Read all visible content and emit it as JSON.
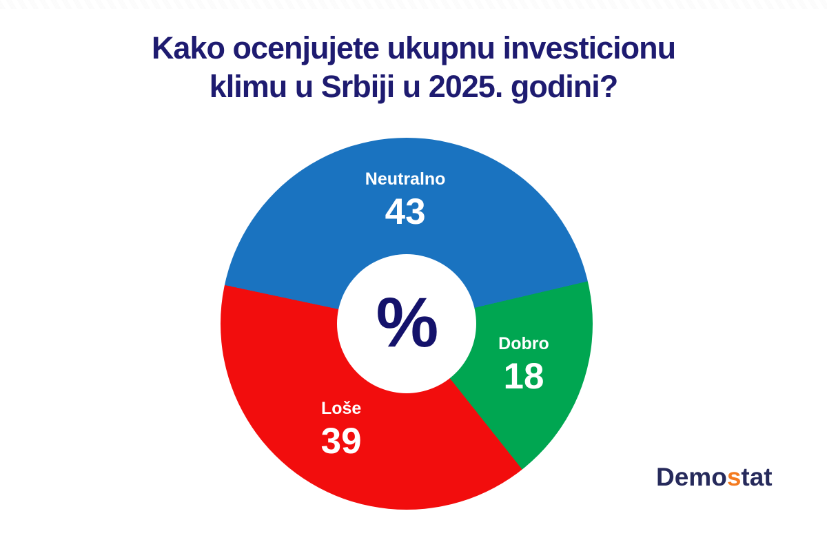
{
  "title": {
    "line1": "Kako ocenjujete ukupnu investicionu",
    "line2": "klimu u Srbiji u 2025. godini?",
    "color": "#1e1b70"
  },
  "chart_data": {
    "type": "pie",
    "subtype": "donut",
    "title": "Kako ocenjujete ukupnu investicionu klimu u Srbiji u 2025. godini?",
    "categories": [
      "Neutralno",
      "Dobro",
      "Loše"
    ],
    "values": [
      43,
      18,
      39
    ],
    "unit": "%",
    "colors": [
      "#1a73c0",
      "#00a651",
      "#f20d0d"
    ],
    "start_angle_deg": 282,
    "direction": "clockwise",
    "donut_hole_ratio": 0.37,
    "center_label": "%",
    "center_label_color": "#14126b",
    "slice_label_color": "#ffffff",
    "legend_position": "none",
    "background": "#ffffff"
  },
  "logo": {
    "text": "Demostat",
    "part1": "Demo",
    "accent": "s",
    "part2": "tat",
    "navy_color": "#262a5b",
    "orange_color": "#f47b20"
  }
}
